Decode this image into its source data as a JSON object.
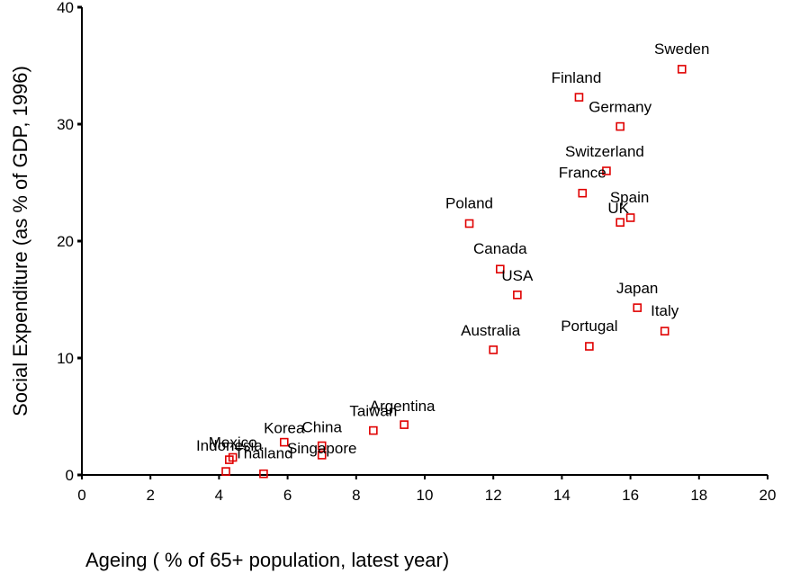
{
  "chart_data": {
    "type": "scatter",
    "title": "",
    "xlabel": "Ageing ( % of 65+ population, latest year)",
    "ylabel": "Social Expenditure (as % of GDP, 1996)",
    "xlim": [
      0,
      20
    ],
    "ylim": [
      0,
      40
    ],
    "x_ticks": [
      0,
      2,
      4,
      6,
      8,
      10,
      12,
      14,
      16,
      18,
      20
    ],
    "y_ticks": [
      0,
      10,
      20,
      30,
      40
    ],
    "grid": false,
    "legend": "none",
    "marker": "hollow-square",
    "marker_color": "#e00000",
    "points": [
      {
        "label": "Sweden",
        "x": 17.5,
        "y": 34.7
      },
      {
        "label": "Finland",
        "x": 14.5,
        "y": 32.3
      },
      {
        "label": "Germany",
        "x": 15.7,
        "y": 29.8
      },
      {
        "label": "Switzerland",
        "x": 15.3,
        "y": 26.0
      },
      {
        "label": "France",
        "x": 14.6,
        "y": 24.1
      },
      {
        "label": "Spain",
        "x": 16.0,
        "y": 22.0
      },
      {
        "label": "UK",
        "x": 15.7,
        "y": 21.6
      },
      {
        "label": "Poland",
        "x": 11.3,
        "y": 21.5
      },
      {
        "label": "Canada",
        "x": 12.2,
        "y": 17.6
      },
      {
        "label": "USA",
        "x": 12.7,
        "y": 15.4
      },
      {
        "label": "Japan",
        "x": 16.2,
        "y": 14.3
      },
      {
        "label": "Italy",
        "x": 17.0,
        "y": 12.3
      },
      {
        "label": "Portugal",
        "x": 14.8,
        "y": 11.0
      },
      {
        "label": "Australia",
        "x": 12.0,
        "y": 10.7
      },
      {
        "label": "Argentina",
        "x": 9.4,
        "y": 4.3
      },
      {
        "label": "Taiwan",
        "x": 8.5,
        "y": 3.8
      },
      {
        "label": "Korea",
        "x": 5.9,
        "y": 2.8
      },
      {
        "label": "China",
        "x": 7.0,
        "y": 2.5
      },
      {
        "label": "Singapore",
        "x": 7.0,
        "y": 1.7
      },
      {
        "label": "Mexico",
        "x": 4.4,
        "y": 1.5
      },
      {
        "label": "Indonesia",
        "x": 4.3,
        "y": 1.3
      },
      {
        "label": "Thailand",
        "x": 5.3,
        "y": 0.1
      },
      {
        "label": "",
        "x": 4.2,
        "y": 0.3
      }
    ]
  }
}
